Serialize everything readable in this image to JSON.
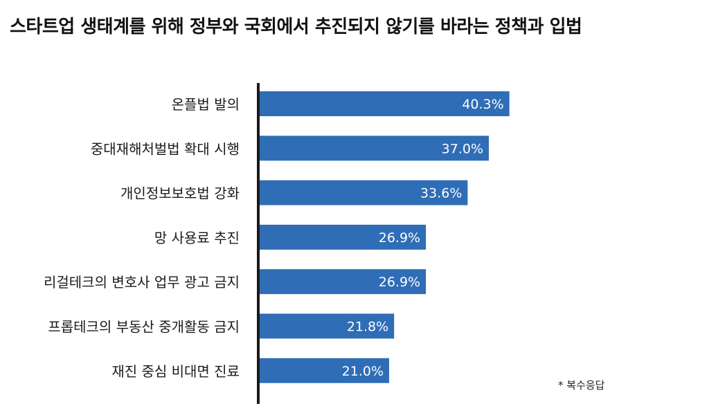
{
  "chart_data": {
    "type": "bar",
    "orientation": "horizontal",
    "title": "스타트업 생태계를 위해 정부와 국회에서 추진되지 않기를 바라는 정책과 입법",
    "categories": [
      "온플법 발의",
      "중대재해처벌법 확대 시행",
      "개인정보보호법 강화",
      "망 사용료 추진",
      "리걸테크의 변호사 업무 광고 금지",
      "프롭테크의 부동산 중개활동 금지",
      "재진 중심 비대면 진료"
    ],
    "values": [
      40.3,
      37.0,
      33.6,
      26.9,
      26.9,
      21.8,
      21.0
    ],
    "data_labels": [
      "40.3%",
      "37.0%",
      "33.6%",
      "26.9%",
      "26.9%",
      "21.8%",
      "21.0%"
    ],
    "unit": "%",
    "bar_color": "#2f6db6",
    "axis_color": "#1a1a1a",
    "grid": false,
    "legend": false,
    "footnote": "* 복수응답"
  }
}
